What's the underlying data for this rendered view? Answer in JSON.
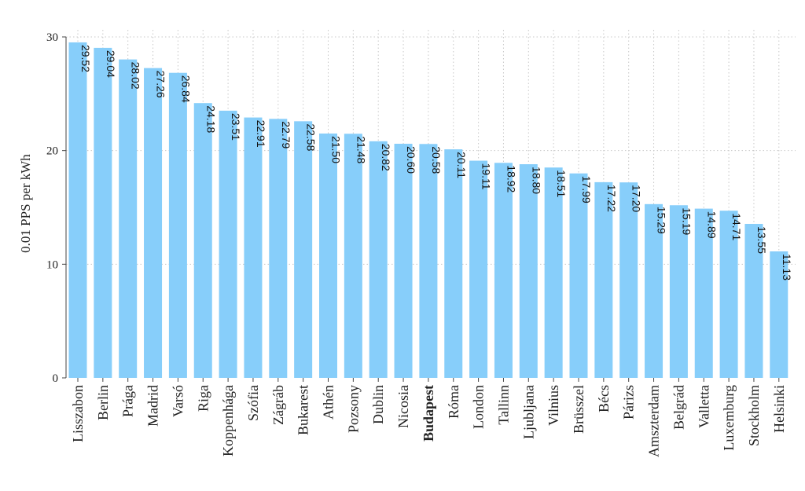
{
  "chart_data": {
    "type": "bar",
    "ylabel": "0.01 PPS per kWh",
    "ylim": [
      0,
      30
    ],
    "yticks": [
      0,
      10,
      20,
      30
    ],
    "grid": true,
    "bar_color": "#87cefa",
    "value_labels": "inside-top-rotated",
    "highlighted_category": "Budapest",
    "categories": [
      "Lisszabon",
      "Berlin",
      "Prága",
      "Madrid",
      "Varsó",
      "Riga",
      "Koppenhága",
      "Szófia",
      "Zágráb",
      "Bukarest",
      "Athén",
      "Pozsony",
      "Dublin",
      "Nicosia",
      "Budapest",
      "Róma",
      "London",
      "Tallinn",
      "Ljubljana",
      "Vilnius",
      "Brüsszel",
      "Bécs",
      "Párizs",
      "Amszterdam",
      "Belgrád",
      "Valletta",
      "Luxemburg",
      "Stockholm",
      "Helsinki"
    ],
    "values": [
      29.52,
      29.04,
      28.02,
      27.26,
      26.84,
      24.18,
      23.51,
      22.91,
      22.79,
      22.58,
      21.5,
      21.48,
      20.82,
      20.6,
      20.58,
      20.11,
      19.11,
      18.92,
      18.8,
      18.51,
      17.99,
      17.22,
      17.2,
      15.29,
      15.19,
      14.89,
      14.71,
      13.55,
      11.13
    ],
    "value_texts": [
      "29.52",
      "29.04",
      "28.02",
      "27.26",
      "26.84",
      "24.18",
      "23.51",
      "22.91",
      "22.79",
      "22.58",
      "21.50",
      "21.48",
      "20.82",
      "20.60",
      "20.58",
      "20.11",
      "19.11",
      "18.92",
      "18.80",
      "18.51",
      "17.99",
      "17.22",
      "17.20",
      "15.29",
      "15.19",
      "14.89",
      "14.71",
      "13.55",
      "11.13"
    ]
  }
}
